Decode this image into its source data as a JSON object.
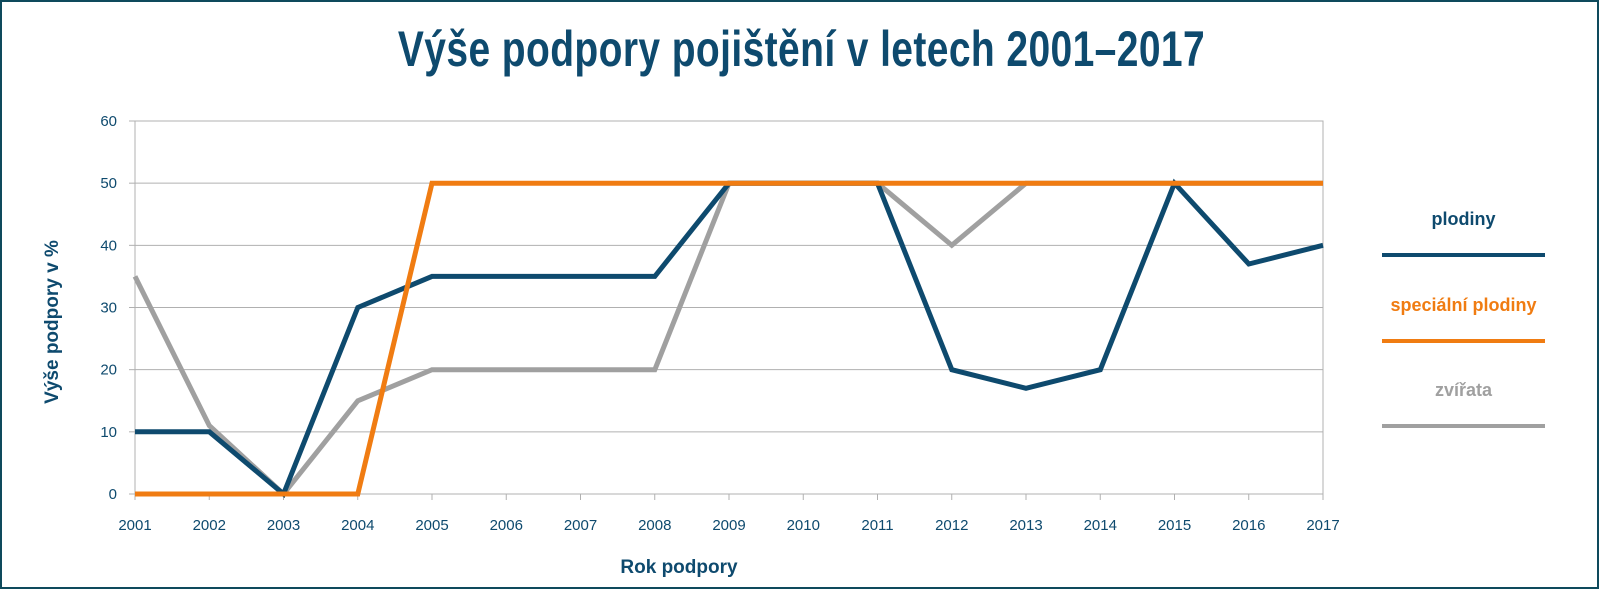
{
  "chart_data": {
    "type": "line",
    "title": "Výše podpory pojištění v letech 2001–2017",
    "xlabel": "Rok podpory",
    "ylabel": "Výše podpory v %",
    "x": [
      "2001",
      "2002",
      "2003",
      "2004",
      "2005",
      "2006",
      "2007",
      "2008",
      "2009",
      "2010",
      "2011",
      "2012",
      "2013",
      "2014",
      "2015",
      "2016",
      "2017"
    ],
    "ylim": [
      0,
      60
    ],
    "yticks": [
      "0",
      "10",
      "20",
      "30",
      "40",
      "50",
      "60"
    ],
    "grid": true,
    "legend_position": "right",
    "series": [
      {
        "name": "plodiny",
        "color": "#0e4a6e",
        "values": [
          10,
          10,
          0,
          30,
          35,
          35,
          35,
          35,
          50,
          50,
          50,
          20,
          17,
          20,
          50,
          37,
          40
        ]
      },
      {
        "name": "speciální plodiny",
        "color": "#f07c12",
        "values": [
          0,
          0,
          0,
          0,
          50,
          50,
          50,
          50,
          50,
          50,
          50,
          50,
          50,
          50,
          50,
          50,
          50
        ]
      },
      {
        "name": "zvířata",
        "color": "#a0a0a0",
        "values": [
          35,
          11,
          0,
          15,
          20,
          20,
          20,
          20,
          50,
          50,
          50,
          40,
          50,
          50,
          50,
          50,
          50
        ]
      }
    ]
  }
}
